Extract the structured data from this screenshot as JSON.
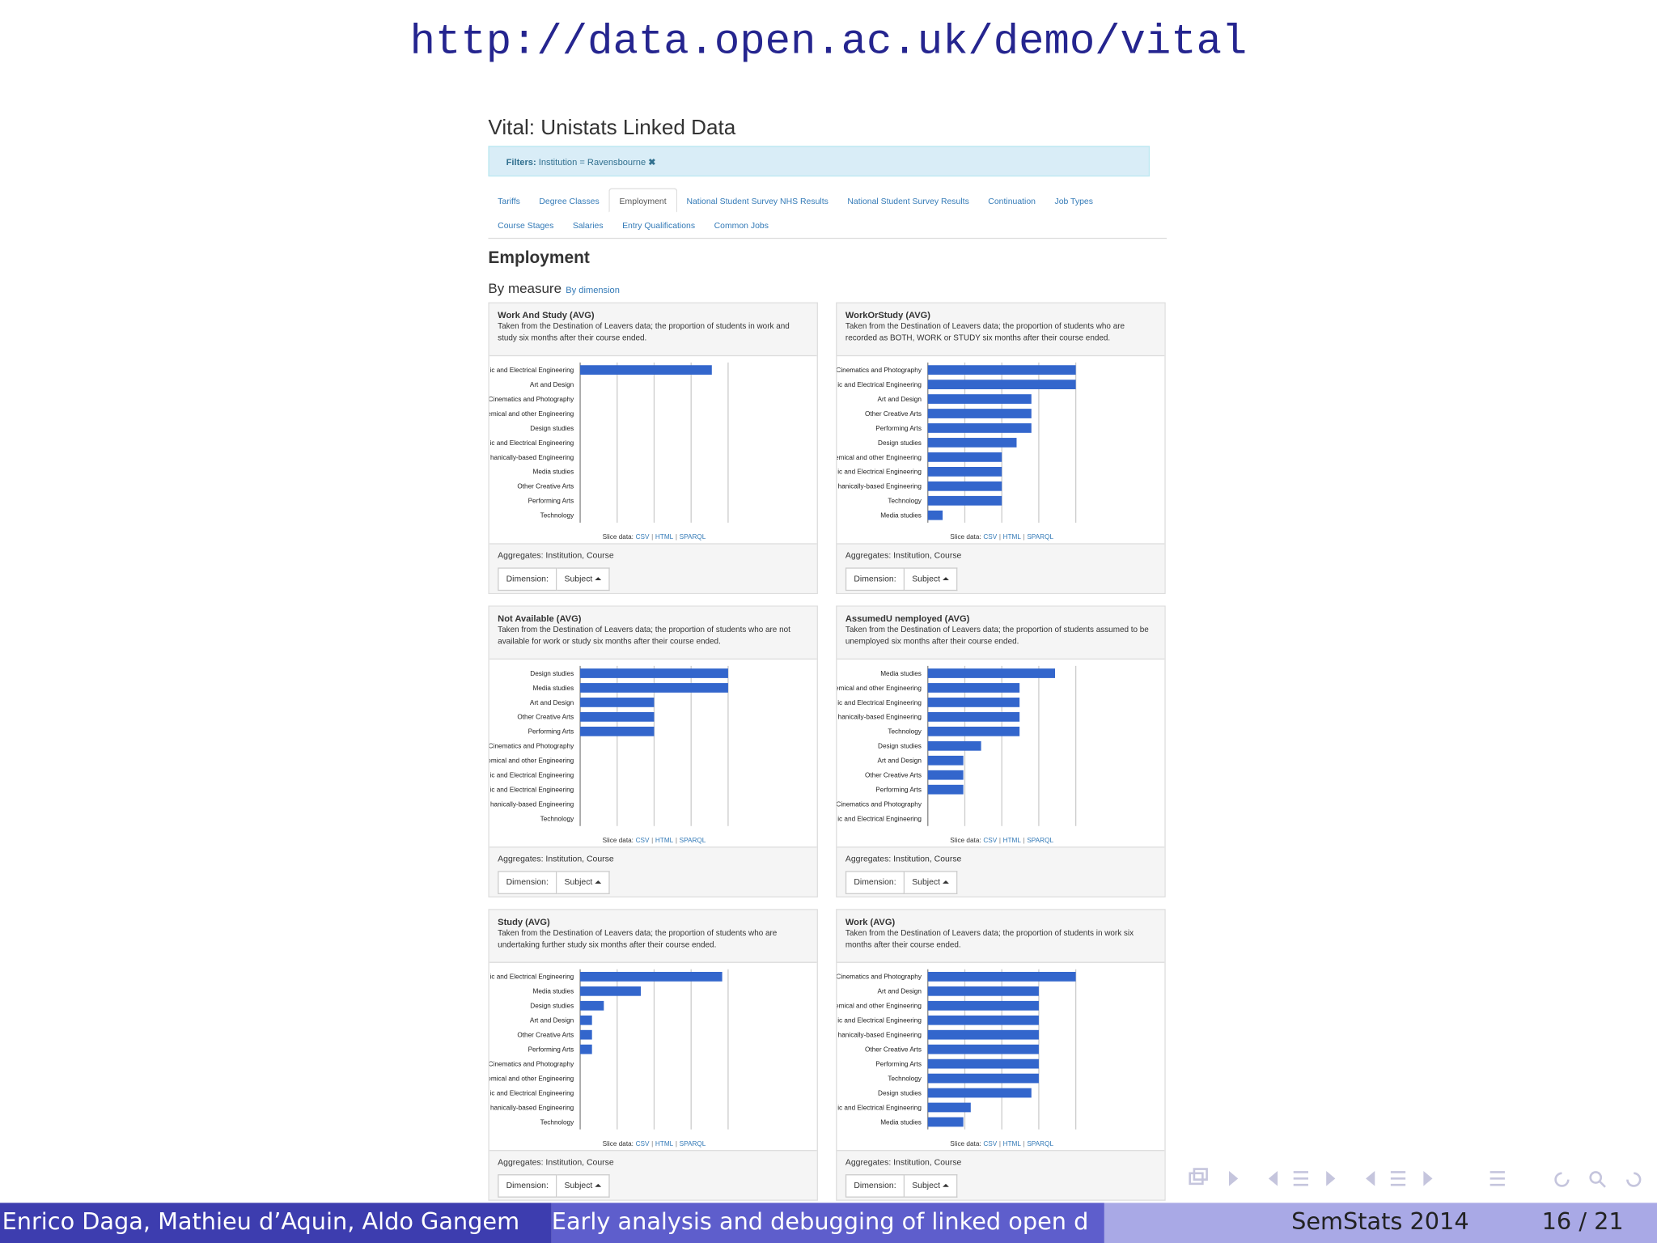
{
  "slide": {
    "title": "http://data.open.ac.uk/demo/vital"
  },
  "page": {
    "title": "Vital: Unistats Linked Data",
    "filter": {
      "label": "Filters:",
      "value": "Institution = Ravensbourne",
      "remove": "✖"
    },
    "tabs": [
      "Tariffs",
      "Degree Classes",
      "Employment",
      "National Student Survey NHS Results",
      "National Student Survey Results",
      "Continuation",
      "Job Types",
      "Course Stages",
      "Salaries",
      "Entry Qualifications",
      "Common Jobs"
    ],
    "active_tab": 2,
    "heading": "Employment",
    "view": "By measure",
    "alt_view": "By dimension"
  },
  "chart_data": [
    {
      "type": "bar",
      "title": "Work And Study (AVG)",
      "description": "Taken from the Destination of Leavers data; the proportion of students in work and study six months after their course ended.",
      "categories": [
        "ic and Electrical Engineering",
        "Art and Design",
        "Cinematics and Photography",
        "emical and other Engineering",
        "Design studies",
        "ic and Electrical Engineering",
        "hanically-based Engineering",
        "Media studies",
        "Other Creative Arts",
        "Performing Arts",
        "Technology"
      ],
      "values": [
        0.89,
        0,
        0,
        0,
        0,
        0,
        0,
        0,
        0,
        0,
        0
      ],
      "color": "#3366cc",
      "xlim": [
        0,
        1
      ],
      "xticks": [
        0.25,
        0.5,
        0.75,
        1
      ],
      "grid": true,
      "slice_label": "Slice data:",
      "links": [
        "CSV",
        "HTML",
        "SPARQL"
      ],
      "separator": "|",
      "aggregates": "Aggregates: Institution, Course",
      "dimension_label": "Dimension:",
      "dimension_value": "Subject"
    },
    {
      "type": "bar",
      "title": "WorkOrStudy (AVG)",
      "description": "Taken from the Destination of Leavers data; the proportion of students who are recorded as BOTH, WORK or STUDY six months after their course ended.",
      "categories": [
        "Cinematics and Photography",
        "ic and Electrical Engineering",
        "Art and Design",
        "Other Creative Arts",
        "Performing Arts",
        "Design studies",
        "emical and other Engineering",
        "ic and Electrical Engineering",
        "hanically-based Engineering",
        "Technology",
        "Media studies"
      ],
      "values": [
        1.0,
        1.0,
        0.7,
        0.7,
        0.7,
        0.6,
        0.5,
        0.5,
        0.5,
        0.5,
        0.1
      ],
      "color": "#3366cc",
      "xlim": [
        0,
        1
      ],
      "xticks": [
        0.25,
        0.5,
        0.75,
        1
      ],
      "grid": true,
      "slice_label": "Slice data:",
      "links": [
        "CSV",
        "HTML",
        "SPARQL"
      ],
      "separator": "|",
      "aggregates": "Aggregates: Institution, Course",
      "dimension_label": "Dimension:",
      "dimension_value": "Subject"
    },
    {
      "type": "bar",
      "title": "Not Available (AVG)",
      "description": "Taken from the Destination of Leavers data; the proportion of students who are not available for work or study six months after their course ended.",
      "categories": [
        "Design studies",
        "Media studies",
        "Art and Design",
        "Other Creative Arts",
        "Performing Arts",
        "Cinematics and Photography",
        "emical and other Engineering",
        "ic and Electrical Engineering",
        "ic and Electrical Engineering",
        "hanically-based Engineering",
        "Technology"
      ],
      "values": [
        1.0,
        1.0,
        0.5,
        0.5,
        0.5,
        0,
        0,
        0,
        0,
        0,
        0
      ],
      "color": "#3366cc",
      "xlim": [
        0,
        1
      ],
      "xticks": [
        0.25,
        0.5,
        0.75,
        1
      ],
      "grid": true,
      "slice_label": "Slice data:",
      "links": [
        "CSV",
        "HTML",
        "SPARQL"
      ],
      "separator": "|",
      "aggregates": "Aggregates: Institution, Course",
      "dimension_label": "Dimension:",
      "dimension_value": "Subject"
    },
    {
      "type": "bar",
      "title": "AssumedU nemployed (AVG)",
      "description": "Taken from the Destination of Leavers data; the proportion of students assumed to be unemployed six months after their course ended.",
      "categories": [
        "Media studies",
        "emical and other Engineering",
        "ic and Electrical Engineering",
        "hanically-based Engineering",
        "Technology",
        "Design studies",
        "Art and Design",
        "Other Creative Arts",
        "Performing Arts",
        "Cinematics and Photography",
        "ic and Electrical Engineering"
      ],
      "values": [
        0.86,
        0.62,
        0.62,
        0.62,
        0.62,
        0.36,
        0.24,
        0.24,
        0.24,
        0,
        0
      ],
      "color": "#3366cc",
      "xlim": [
        0,
        1
      ],
      "xticks": [
        0.25,
        0.5,
        0.75,
        1
      ],
      "grid": true,
      "slice_label": "Slice data:",
      "links": [
        "CSV",
        "HTML",
        "SPARQL"
      ],
      "separator": "|",
      "aggregates": "Aggregates: Institution, Course",
      "dimension_label": "Dimension:",
      "dimension_value": "Subject"
    },
    {
      "type": "bar",
      "title": "Study (AVG)",
      "description": "Taken from the Destination of Leavers data; the proportion of students who are undertaking further study six months after their course ended.",
      "categories": [
        "ic and Electrical Engineering",
        "Media studies",
        "Design studies",
        "Art and Design",
        "Other Creative Arts",
        "Performing Arts",
        "Cinematics and Photography",
        "emical and other Engineering",
        "ic and Electrical Engineering",
        "hanically-based Engineering",
        "Technology"
      ],
      "values": [
        0.96,
        0.41,
        0.16,
        0.08,
        0.08,
        0.08,
        0,
        0,
        0,
        0,
        0
      ],
      "color": "#3366cc",
      "xlim": [
        0,
        1
      ],
      "xticks": [
        0.25,
        0.5,
        0.75,
        1
      ],
      "grid": true,
      "slice_label": "Slice data:",
      "links": [
        "CSV",
        "HTML",
        "SPARQL"
      ],
      "separator": "|",
      "aggregates": "Aggregates: Institution, Course",
      "dimension_label": "Dimension:",
      "dimension_value": "Subject"
    },
    {
      "type": "bar",
      "title": "Work (AVG)",
      "description": "Taken from the Destination of Leavers data; the proportion of students in work six months after their course ended.",
      "categories": [
        "Cinematics and Photography",
        "Art and Design",
        "emical and other Engineering",
        "ic and Electrical Engineering",
        "hanically-based Engineering",
        "Other Creative Arts",
        "Performing Arts",
        "Technology",
        "Design studies",
        "ic and Electrical Engineering",
        "Media studies"
      ],
      "values": [
        1.0,
        0.75,
        0.75,
        0.75,
        0.75,
        0.75,
        0.75,
        0.75,
        0.7,
        0.29,
        0.24
      ],
      "color": "#3366cc",
      "xlim": [
        0,
        1
      ],
      "xticks": [
        0.25,
        0.5,
        0.75,
        1
      ],
      "grid": true,
      "slice_label": "Slice data:",
      "links": [
        "CSV",
        "HTML",
        "SPARQL"
      ],
      "separator": "|",
      "aggregates": "Aggregates: Institution, Course",
      "dimension_label": "Dimension:",
      "dimension_value": "Subject"
    }
  ],
  "footer": {
    "authors": "Enrico Daga, Mathieu d’Aquin, Aldo Gangem",
    "talk": "Early analysis and debugging of linked open d",
    "event": "SemStats 2014",
    "page": "16 / 21"
  }
}
